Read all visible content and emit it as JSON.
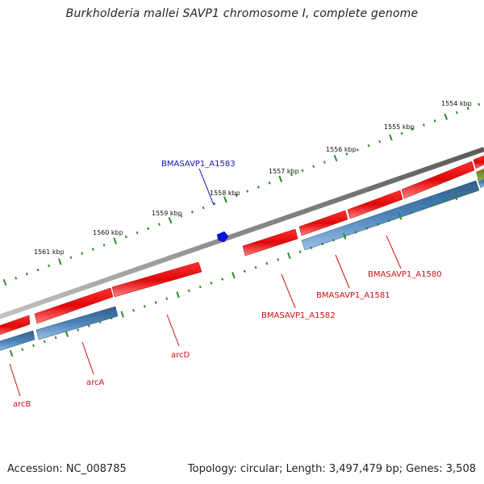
{
  "title": "Burkholderia mallei SAVP1 chromosome I, complete genome",
  "footer": {
    "accession": "Accession: NC_008785",
    "summary": "Topology: circular; Length: 3,497,479 bp; Genes: 3,508"
  },
  "colors": {
    "backbone": "#777777",
    "forward_gene": "#e01010",
    "reverse_gene": "#4a7fb5",
    "rna_gene": "#0a12d8",
    "other_feature": "#6e8c2a",
    "tick": "#2a8a2a",
    "forward_label": "#cc1111",
    "rna_label": "#1111bb"
  },
  "tick_labels": [
    "1554 kbp",
    "1555 kbp",
    "1556 kbp",
    "1557 kbp",
    "1558 kbp",
    "1559 kbp",
    "1560 kbp",
    "1561 kbp"
  ],
  "gene_labels": {
    "rna": [
      "BMASAVP1_A1583"
    ],
    "forward": [
      "BMASAVP1_A1580",
      "BMASAVP1_A1581",
      "BMASAVP1_A1582",
      "arcD",
      "arcA",
      "arcB"
    ]
  }
}
